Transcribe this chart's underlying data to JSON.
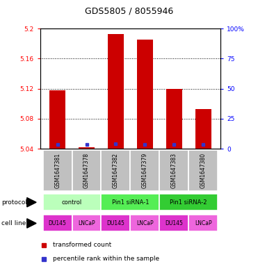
{
  "title": "GDS5805 / 8055946",
  "samples": [
    "GSM1647381",
    "GSM1647378",
    "GSM1647382",
    "GSM1647379",
    "GSM1647383",
    "GSM1647380"
  ],
  "transformed_counts": [
    5.118,
    5.042,
    5.193,
    5.185,
    5.12,
    5.093
  ],
  "percentile_values": [
    5.046,
    5.046,
    5.047,
    5.046,
    5.046,
    5.046
  ],
  "ylim_left": [
    5.04,
    5.2
  ],
  "ylim_right": [
    0,
    100
  ],
  "yticks_left": [
    5.04,
    5.08,
    5.12,
    5.16,
    5.2
  ],
  "yticks_right": [
    0,
    25,
    50,
    75,
    100
  ],
  "ytick_labels_left": [
    "5.04",
    "5.08",
    "5.12",
    "5.16",
    "5.2"
  ],
  "ytick_labels_right": [
    "0",
    "25",
    "50",
    "75",
    "100%"
  ],
  "bar_color": "#cc0000",
  "dot_color": "#3333cc",
  "bar_width": 0.55,
  "protocol_groups": [
    {
      "label": "control",
      "cols": [
        0,
        1
      ],
      "color": "#bbffbb"
    },
    {
      "label": "Pin1 siRNA-1",
      "cols": [
        2,
        3
      ],
      "color": "#55ee55"
    },
    {
      "label": "Pin1 siRNA-2",
      "cols": [
        4,
        5
      ],
      "color": "#33cc33"
    }
  ],
  "cell_lines": [
    "DU145",
    "LNCaP",
    "DU145",
    "LNCaP",
    "DU145",
    "LNCaP"
  ],
  "cell_line_color_du145": "#dd33cc",
  "cell_line_color_lncap": "#ee66dd",
  "sample_bg": "#c0c0c0",
  "legend_label_count": "transformed count",
  "legend_label_pct": "percentile rank within the sample",
  "label_protocol": "protocol",
  "label_cell_line": "cell line"
}
